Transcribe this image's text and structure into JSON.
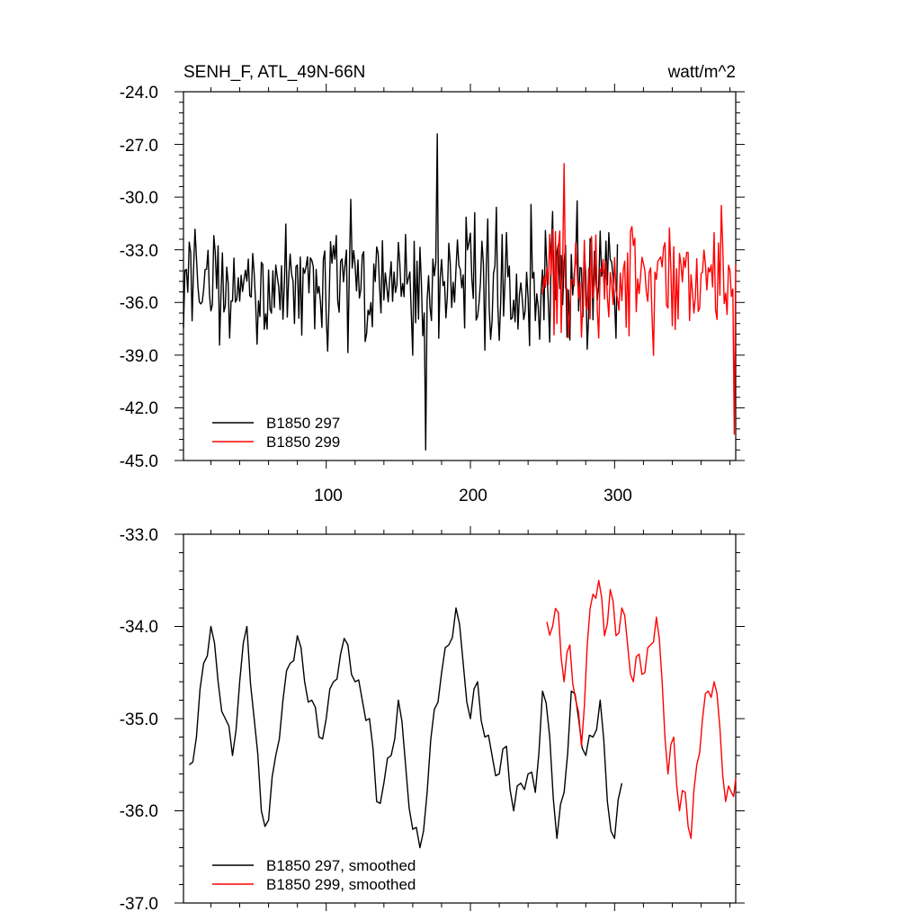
{
  "chart_data": [
    {
      "type": "line",
      "title": "SENH_F, ATL_49N-66N",
      "units": "watt/m^2",
      "xlim": [
        1,
        384
      ],
      "ylim": [
        -45.0,
        -24.0
      ],
      "xticks": [
        100,
        200,
        300
      ],
      "xtick_labels": [
        "100",
        "200",
        "300"
      ],
      "yticks": [
        -45,
        -42,
        -39,
        -36,
        -33,
        -30,
        -27,
        -24
      ],
      "ytick_labels": [
        "-45.0",
        "-42.0",
        "-39.0",
        "-36.0",
        "-33.0",
        "-30.0",
        "-27.0",
        "-24.0"
      ],
      "legend": [
        "B1850 297",
        "B1850 299"
      ],
      "series": [
        {
          "name": "B1850 297",
          "color": "#000000",
          "x_start": 1,
          "x_end": 302,
          "seed": 297,
          "mean": -34.8,
          "amp": 2.6,
          "peak_x": 177,
          "peak_y": -26.4,
          "min_x": 169,
          "min_y": -44.4
        },
        {
          "name": "B1850 299",
          "color": "#ff0000",
          "x_start": 250,
          "x_end": 384,
          "seed": 299,
          "mean": -34.8,
          "amp": 2.7,
          "peak_x": 265,
          "peak_y": -28.1,
          "min_x": 383,
          "min_y": -43.5
        }
      ]
    },
    {
      "type": "line",
      "title": "",
      "xlim": [
        1,
        384
      ],
      "ylim": [
        -37.0,
        -33.0
      ],
      "yticks": [
        -37,
        -36,
        -35,
        -34,
        -33
      ],
      "ytick_labels": [
        "-37.0",
        "-36.0",
        "-35.0",
        "-34.0",
        "-33.0"
      ],
      "legend": [
        "B1850 297, smoothed",
        "B1850 299, smoothed"
      ],
      "series": [
        {
          "name": "B1850 297, smoothed",
          "color": "#000000",
          "x": [
            5,
            10,
            15,
            20,
            25,
            30,
            35,
            40,
            45,
            50,
            55,
            60,
            65,
            70,
            75,
            80,
            85,
            90,
            95,
            100,
            105,
            110,
            115,
            120,
            125,
            130,
            135,
            140,
            145,
            150,
            155,
            160,
            165,
            170,
            175,
            180,
            185,
            190,
            195,
            200,
            205,
            210,
            215,
            220,
            225,
            230,
            235,
            240,
            245,
            250,
            255,
            260,
            265,
            270,
            275,
            280,
            285,
            290,
            295,
            300,
            305
          ],
          "y": [
            -35.5,
            -35.2,
            -34.4,
            -34.0,
            -34.6,
            -35.0,
            -35.4,
            -34.6,
            -34.0,
            -35.0,
            -36.0,
            -36.1,
            -35.4,
            -34.8,
            -34.4,
            -34.1,
            -34.6,
            -34.8,
            -35.2,
            -35.0,
            -34.6,
            -34.3,
            -34.2,
            -34.6,
            -34.8,
            -35.0,
            -35.9,
            -35.7,
            -35.4,
            -34.8,
            -35.5,
            -36.2,
            -36.4,
            -35.8,
            -34.9,
            -34.5,
            -34.2,
            -33.8,
            -34.4,
            -35.0,
            -34.6,
            -35.2,
            -35.4,
            -35.6,
            -35.3,
            -36.0,
            -35.7,
            -35.6,
            -35.8,
            -34.7,
            -35.2,
            -36.3,
            -35.8,
            -34.7,
            -35.0,
            -35.4,
            -35.2,
            -34.8,
            -35.9,
            -36.3,
            -35.7
          ]
        },
        {
          "name": "B1850 299, smoothed",
          "color": "#ff0000",
          "x": [
            253,
            257,
            261,
            265,
            269,
            273,
            277,
            281,
            285,
            289,
            293,
            297,
            301,
            305,
            309,
            313,
            317,
            321,
            325,
            329,
            333,
            337,
            341,
            345,
            349,
            353,
            357,
            361,
            365,
            369,
            373,
            377,
            381,
            384
          ],
          "y": [
            -33.95,
            -34.0,
            -33.85,
            -34.6,
            -34.2,
            -34.8,
            -35.3,
            -34.2,
            -33.65,
            -33.5,
            -34.1,
            -33.6,
            -34.1,
            -33.8,
            -34.2,
            -34.6,
            -34.3,
            -34.5,
            -34.2,
            -33.9,
            -34.6,
            -35.6,
            -35.2,
            -36.0,
            -35.8,
            -36.3,
            -35.5,
            -35.0,
            -34.7,
            -34.6,
            -35.1,
            -35.9,
            -35.8,
            -35.65
          ]
        }
      ]
    }
  ]
}
